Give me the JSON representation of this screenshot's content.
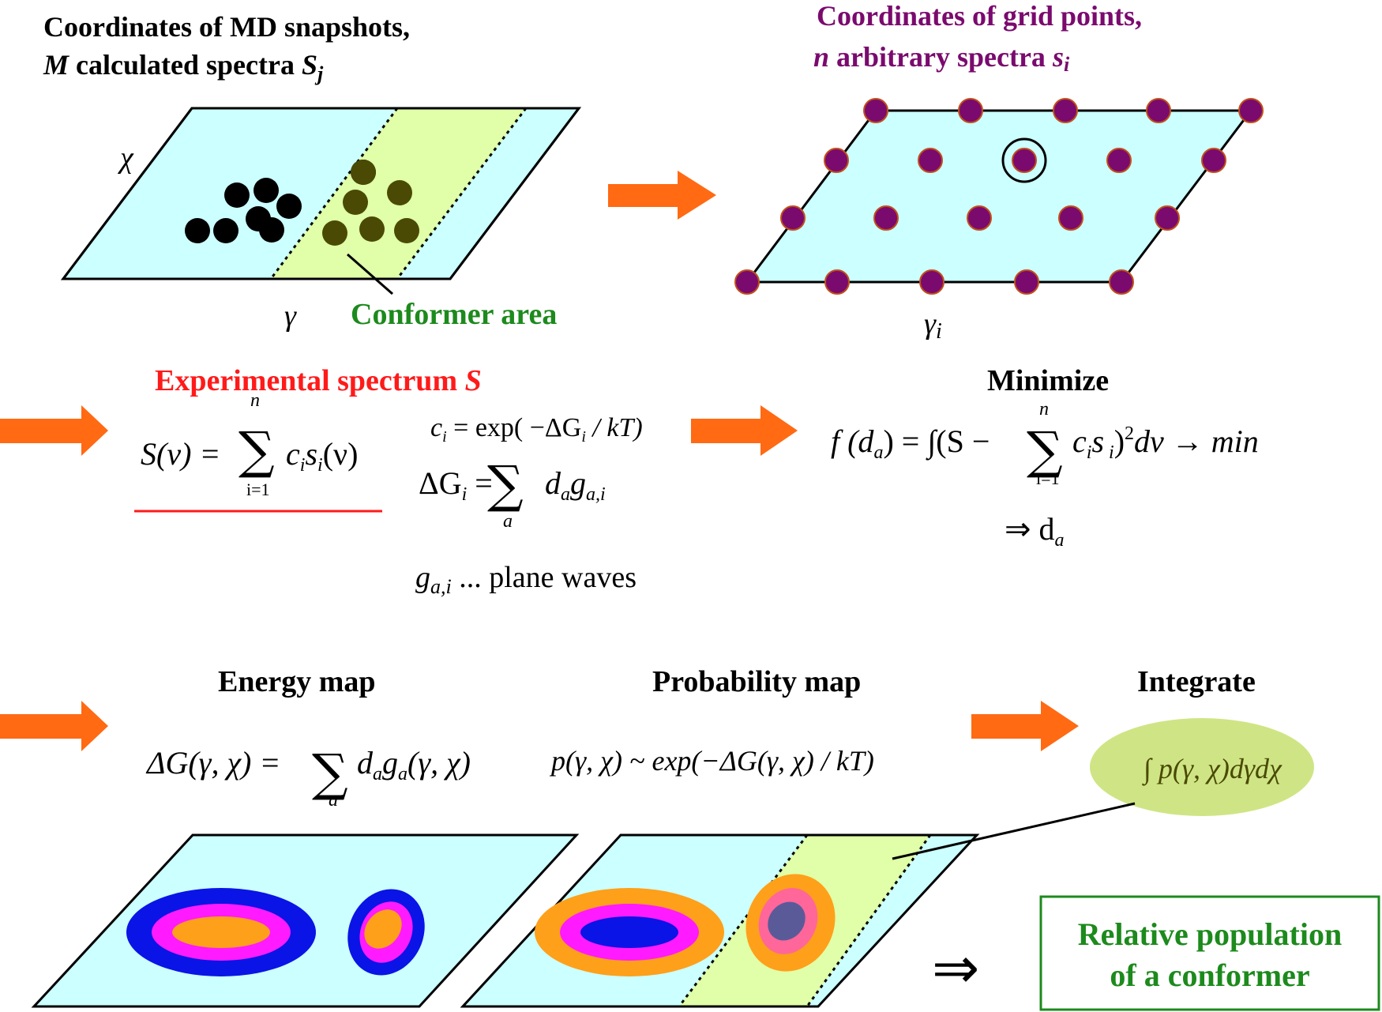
{
  "colors": {
    "plane_fill": "#ccffff",
    "conformer_fill": "#e0ffa8",
    "arrow": "#ff6a13",
    "purple": "#7a0a6e",
    "red": "#ff1a1a",
    "green": "#1c8a1c",
    "blue": "#0a14e6",
    "magenta": "#ff1aff",
    "orange": "#ffa01a",
    "pink": "#ff6699",
    "slate": "#5a5a99",
    "olive_dot": "#4a4a05",
    "ellipse_fill": "#cfe585"
  },
  "panel1": {
    "title_line1": "Coordinates of MD snapshots,",
    "title_line2_prefix": "M",
    "title_line2_mid": " calculated spectra ",
    "title_line2_var": "S",
    "title_line2_sub": "j",
    "axis_chi": "χ",
    "axis_gamma": "γ",
    "conformer_label": "Conformer area"
  },
  "panel2": {
    "title_line1": "Coordinates of grid points,",
    "title_line2_prefix": "n",
    "title_line2_mid": " arbitrary  spectra ",
    "title_line2_var": "s",
    "title_line2_sub": "i",
    "axis_gamma": "γ",
    "axis_gamma_sub": "i"
  },
  "middle": {
    "exp_label_text": "Experimental spectrum ",
    "exp_label_var": "S",
    "eq_S": "S(ν) = Σ c_i s_i(ν)",
    "eq_S_lhs": "S(ν) = ",
    "eq_S_rhs": "c",
    "eq_S_rhs_sub": "i",
    "eq_S_rhs2": "s",
    "eq_S_rhs2_sub": "i",
    "eq_S_rhs3": "(ν)",
    "sum_top_n": "n",
    "sum_bottom_i1": "i=1",
    "eq_ci_lhs": "c",
    "eq_ci_lhs_sub": "i",
    "eq_ci_rhs": " = exp( −ΔG",
    "eq_ci_rhs_sub": "i",
    "eq_ci_rhs_end": " / kT)",
    "eq_dG_lhs": "ΔG",
    "eq_dG_lhs_sub": "i",
    "eq_dG_eq": " = ",
    "eq_dG_rhs": "d",
    "eq_dG_rhs_sub": "a",
    "eq_dG_rhs2": "g",
    "eq_dG_rhs2_sub": "a,i",
    "sum_bottom_a": "a",
    "plane_waves_var": "g",
    "plane_waves_sub": "a,i",
    "plane_waves_text": " ... plane waves",
    "minimize_label": "Minimize",
    "eq_f_lhs": "f (d",
    "eq_f_lhs_sub": "a",
    "eq_f_mid": ") = ∫(S −",
    "eq_f_ci": "c",
    "eq_f_ci_sub": "i",
    "eq_f_si": "s",
    "eq_f_si_sub": " i",
    "eq_f_end": ")",
    "eq_f_sq": "2",
    "eq_f_tail": "dν → min",
    "implies_da": "⇒ d",
    "implies_da_sub": "a"
  },
  "bottom": {
    "energy_label": "Energy map",
    "probability_label": "Probability map",
    "integrate_label": "Integrate",
    "eq_energy_lhs": "ΔG(γ, χ) = ",
    "eq_energy_rhs": "d",
    "eq_energy_rhs_sub": "a",
    "eq_energy_rhs2": "g",
    "eq_energy_rhs2_sub": "a",
    "eq_energy_rhs3": "(γ, χ)",
    "eq_prob": "p(γ, χ) ~ exp(−ΔG(γ, χ) / kT)",
    "eq_integral": "∫ p(γ, χ)dγdχ",
    "implies": "⇒",
    "result_line1": "Relative population",
    "result_line2": "of a conformer"
  }
}
